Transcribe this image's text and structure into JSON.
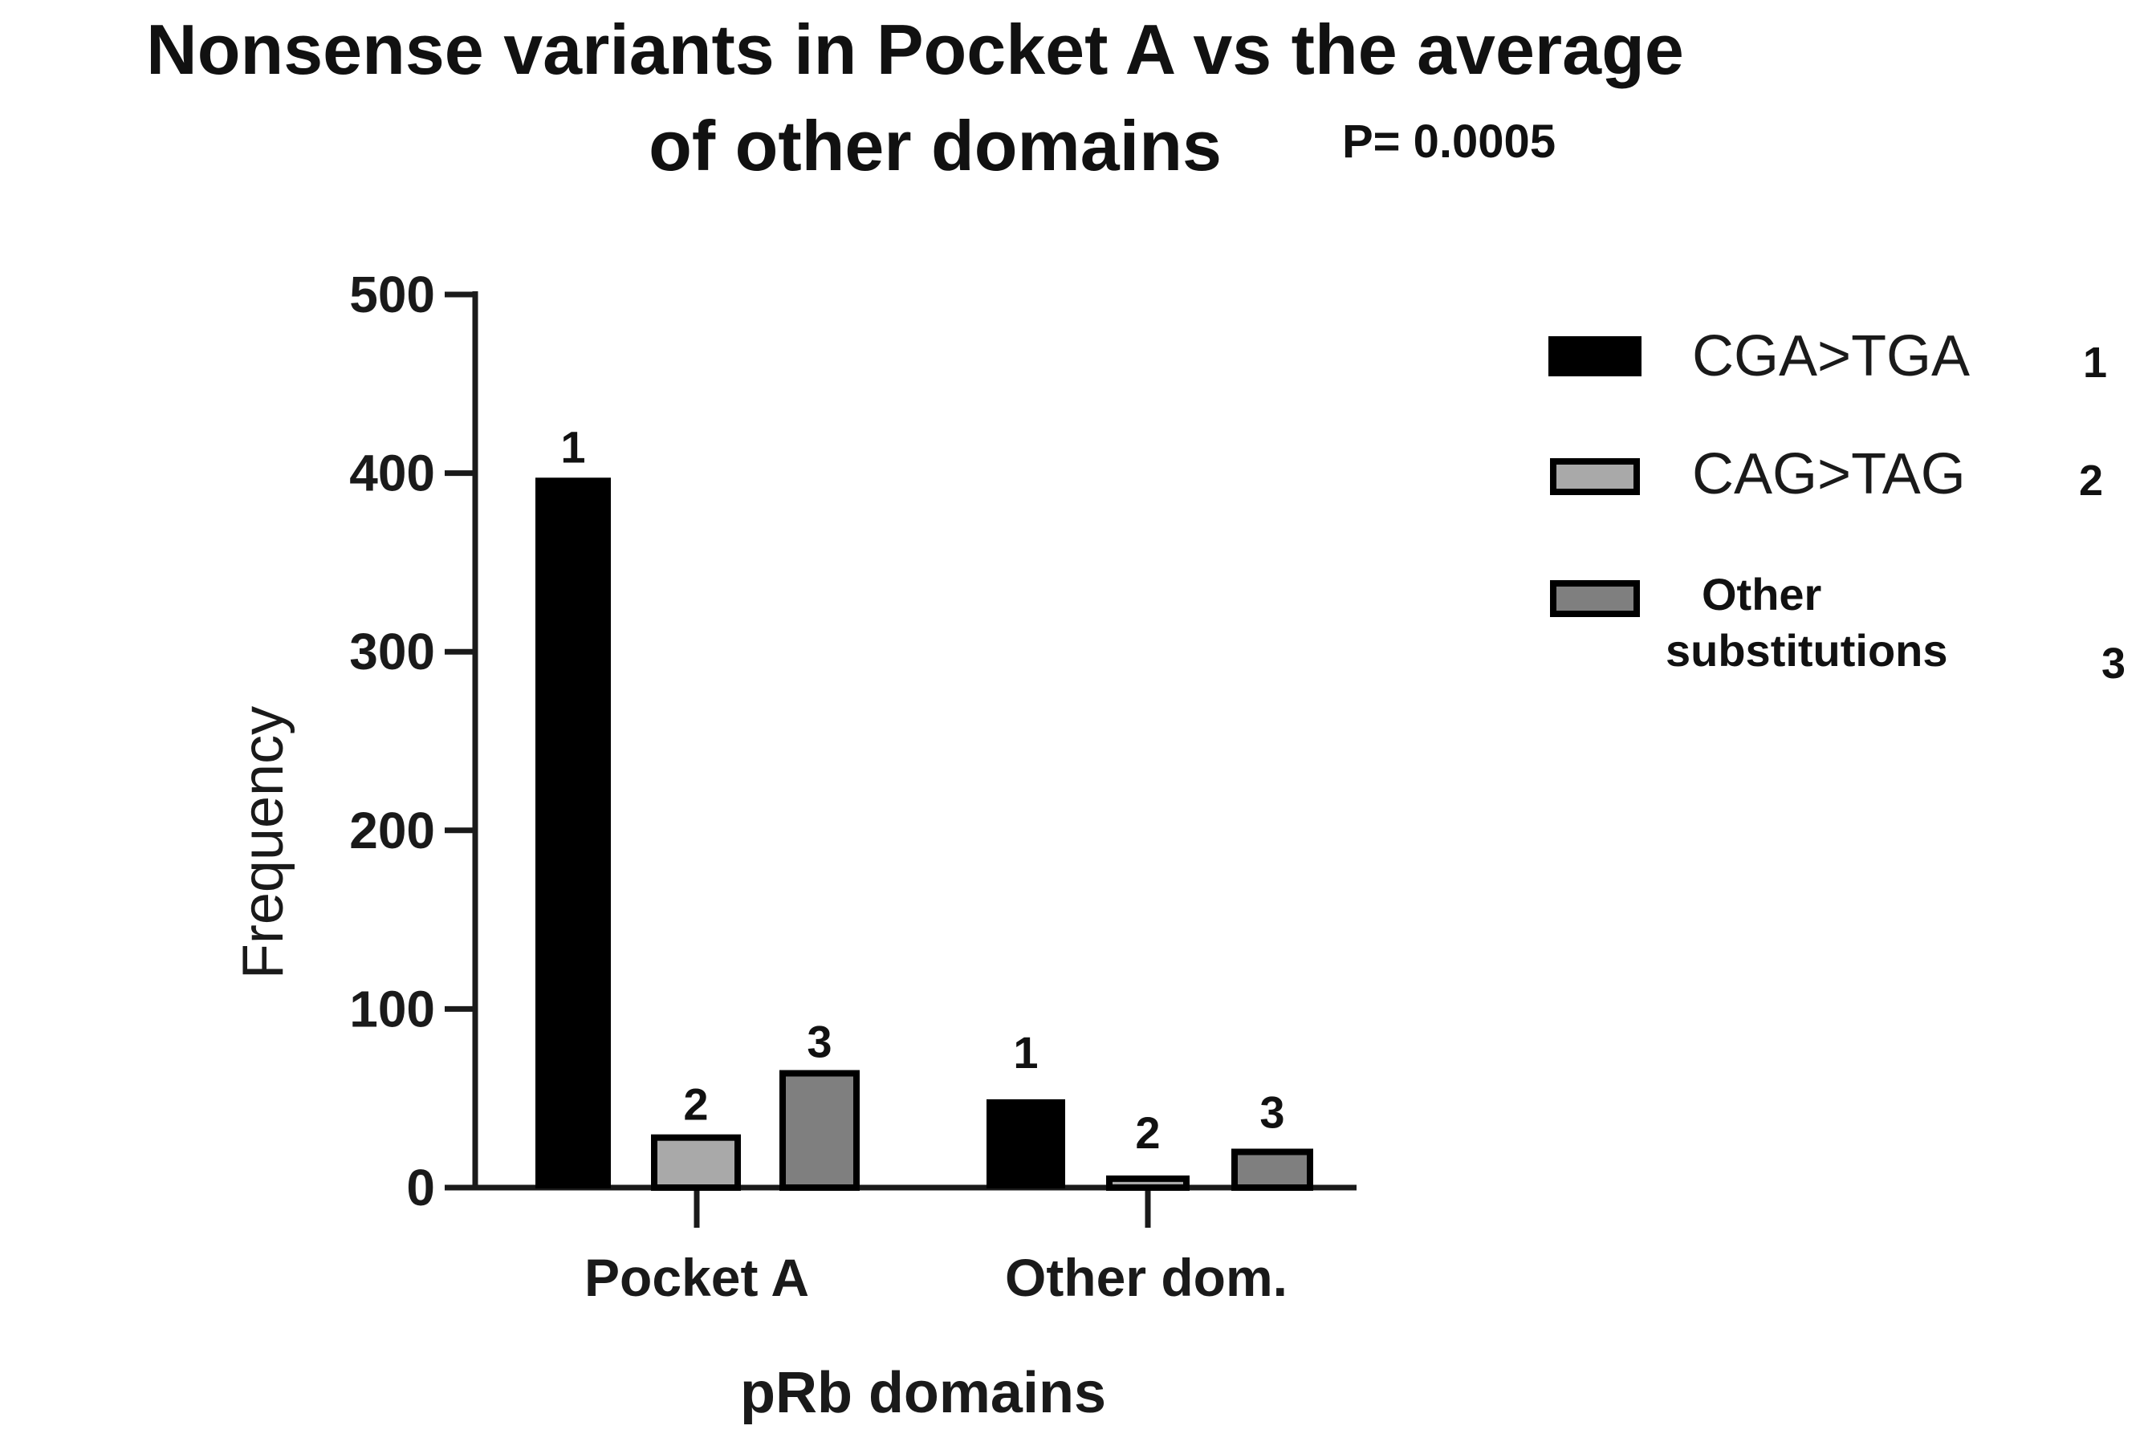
{
  "title_line1": "Nonsense variants in Pocket A vs the average",
  "title_line2": "of other domains",
  "p_value_text": "P= 0.0005",
  "chart_data": {
    "type": "bar",
    "title": "Nonsense variants in Pocket A vs the average of other domains",
    "xlabel": "pRb domains",
    "ylabel": "Frequency",
    "ylim": [
      0,
      500
    ],
    "yticks": [
      0,
      100,
      200,
      300,
      400,
      500
    ],
    "ytick_labels": [
      "0",
      "100",
      "200",
      "300",
      "400",
      "500"
    ],
    "categories": [
      "Pocket A",
      "Other dom."
    ],
    "series": [
      {
        "name": "CGA>TGA",
        "marker": "1",
        "color": "#000000",
        "values": [
          397,
          49
        ]
      },
      {
        "name": "CAG>TAG",
        "marker": "2",
        "color": "#a9a9a9",
        "values": [
          28,
          5
        ]
      },
      {
        "name": "Other substitutions",
        "marker": "3",
        "color": "#7f7f7f",
        "values": [
          64,
          20
        ]
      }
    ],
    "grid": false,
    "legend_position": "right"
  },
  "legend": {
    "items": [
      {
        "label": "CGA>TGA",
        "marker": "1",
        "color": "#000000"
      },
      {
        "label": "CAG>TAG",
        "marker": "2",
        "color": "#a9a9a9"
      },
      {
        "label_line1": "Other",
        "label_line2": "substitutions",
        "marker": "3",
        "color": "#7f7f7f"
      }
    ]
  }
}
